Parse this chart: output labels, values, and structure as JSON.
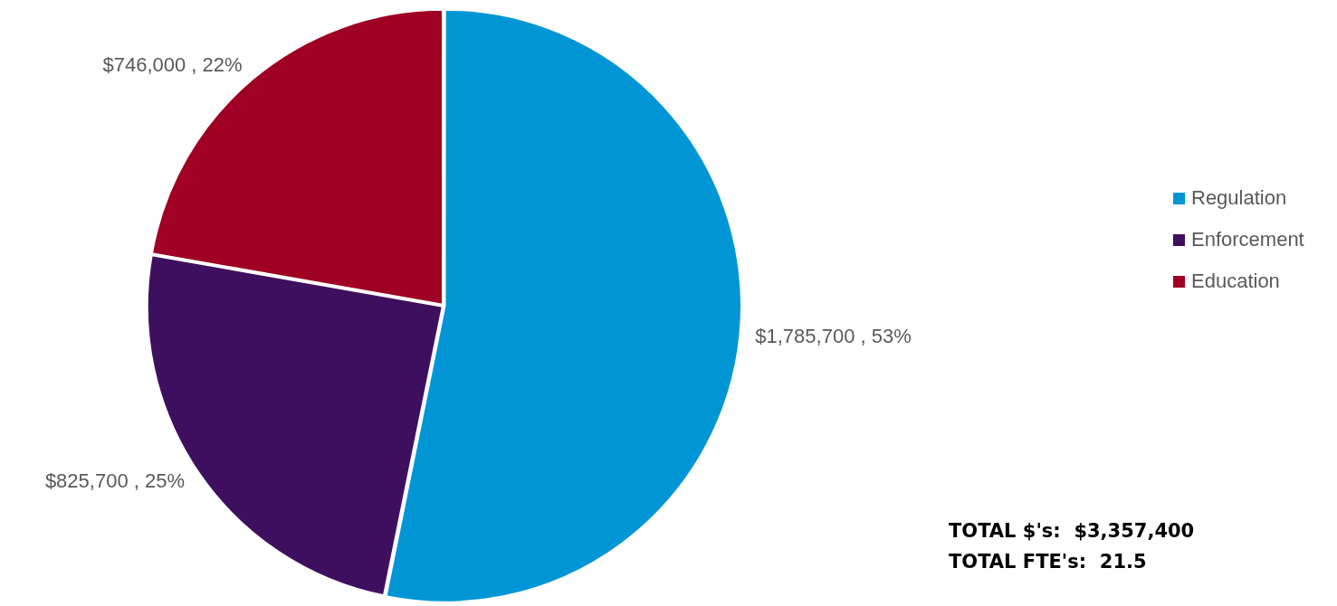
{
  "chart_data": {
    "type": "pie",
    "categories": [
      "Regulation",
      "Enforcement",
      "Education"
    ],
    "values": [
      1785700,
      825700,
      746000
    ],
    "colors": [
      "#0096d6",
      "#3f0f5f",
      "#a00024"
    ],
    "value_labels": [
      "$1,785,700 , 53%",
      "$825,700 , 25%",
      "$746,000 , 22%"
    ],
    "legend": "right",
    "annotations": [
      "TOTAL $'s:  $3,357,400",
      "TOTAL FTE's:  21.5"
    ]
  }
}
